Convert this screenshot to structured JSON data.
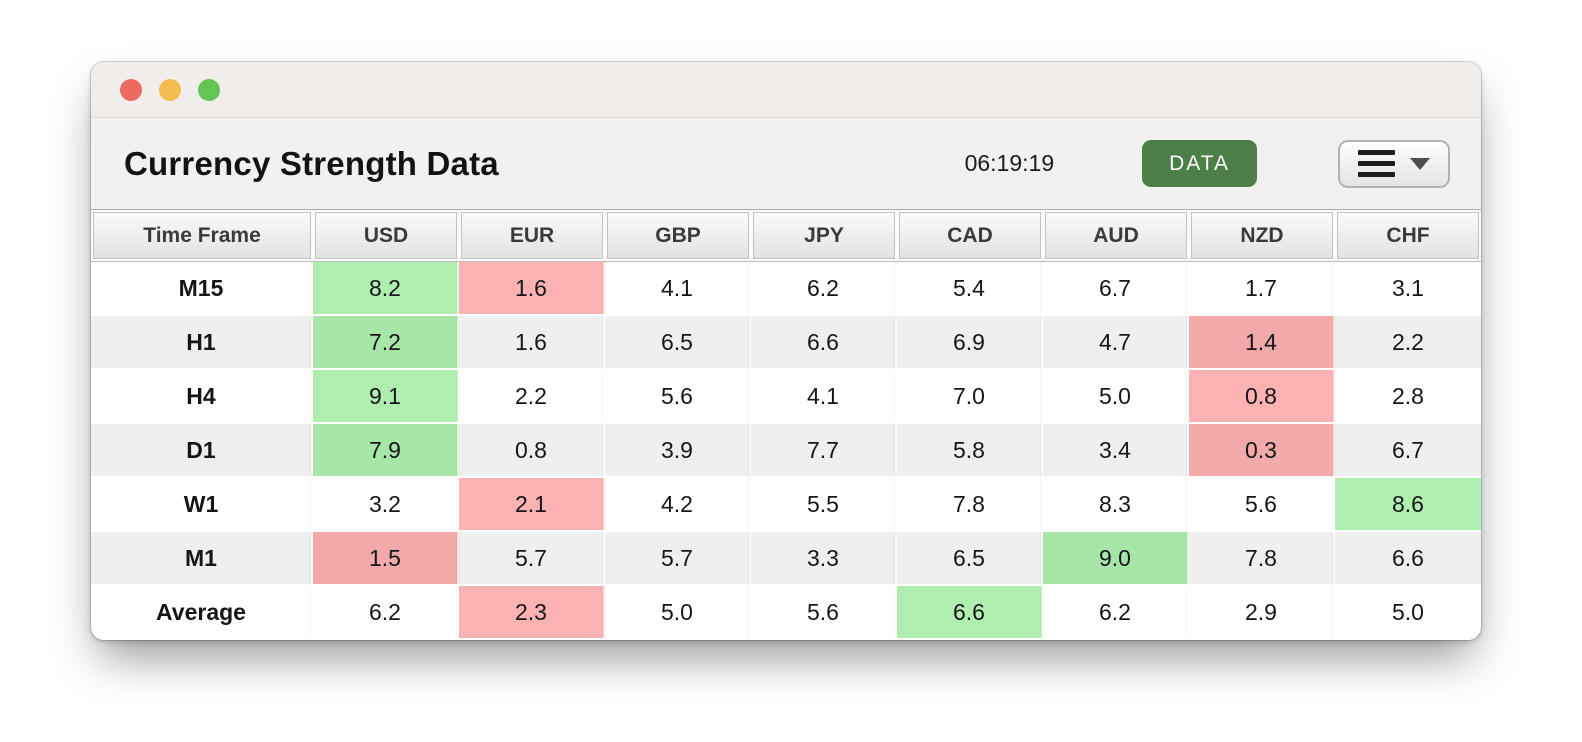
{
  "window": {
    "title": "Currency Strength Data",
    "clock": "06:19:19",
    "data_button_label": "DATA",
    "traffic_lights": [
      {
        "name": "close-button",
        "color": "#ED6A5F"
      },
      {
        "name": "minimize-button",
        "color": "#F5BD4F"
      },
      {
        "name": "zoom-button",
        "color": "#62C554"
      }
    ],
    "menu_button_icons": [
      "hamburger-icon",
      "chevron-down-icon"
    ]
  },
  "colors": {
    "accent_button_green": "#4B7F47",
    "highlight_green": "#B2F0B2",
    "highlight_red": "#FBB4B4",
    "row_stripe_gray": "#EFEFEF",
    "titlebar_bg": "#F0EDEB",
    "toolbar_bg": "#F3F1F0"
  },
  "table": {
    "columns": [
      "Time Frame",
      "USD",
      "EUR",
      "GBP",
      "JPY",
      "CAD",
      "AUD",
      "NZD",
      "CHF"
    ],
    "rows": [
      {
        "label": "M15",
        "cells": [
          {
            "v": "8.2",
            "hl": "green"
          },
          {
            "v": "1.6",
            "hl": "red"
          },
          {
            "v": "4.1"
          },
          {
            "v": "6.2"
          },
          {
            "v": "5.4"
          },
          {
            "v": "6.7"
          },
          {
            "v": "1.7"
          },
          {
            "v": "3.1"
          }
        ]
      },
      {
        "label": "H1",
        "cells": [
          {
            "v": "7.2",
            "hl": "green"
          },
          {
            "v": "1.6"
          },
          {
            "v": "6.5"
          },
          {
            "v": "6.6"
          },
          {
            "v": "6.9"
          },
          {
            "v": "4.7"
          },
          {
            "v": "1.4",
            "hl": "red"
          },
          {
            "v": "2.2"
          }
        ]
      },
      {
        "label": "H4",
        "cells": [
          {
            "v": "9.1",
            "hl": "green"
          },
          {
            "v": "2.2"
          },
          {
            "v": "5.6"
          },
          {
            "v": "4.1"
          },
          {
            "v": "7.0"
          },
          {
            "v": "5.0"
          },
          {
            "v": "0.8",
            "hl": "red"
          },
          {
            "v": "2.8"
          }
        ]
      },
      {
        "label": "D1",
        "cells": [
          {
            "v": "7.9",
            "hl": "green"
          },
          {
            "v": "0.8"
          },
          {
            "v": "3.9"
          },
          {
            "v": "7.7"
          },
          {
            "v": "5.8"
          },
          {
            "v": "3.4"
          },
          {
            "v": "0.3",
            "hl": "red"
          },
          {
            "v": "6.7"
          }
        ]
      },
      {
        "label": "W1",
        "cells": [
          {
            "v": "3.2"
          },
          {
            "v": "2.1",
            "hl": "red"
          },
          {
            "v": "4.2"
          },
          {
            "v": "5.5"
          },
          {
            "v": "7.8"
          },
          {
            "v": "8.3"
          },
          {
            "v": "5.6"
          },
          {
            "v": "8.6",
            "hl": "green"
          }
        ]
      },
      {
        "label": "M1",
        "cells": [
          {
            "v": "1.5",
            "hl": "red"
          },
          {
            "v": "5.7"
          },
          {
            "v": "5.7"
          },
          {
            "v": "3.3"
          },
          {
            "v": "6.5"
          },
          {
            "v": "9.0",
            "hl": "green"
          },
          {
            "v": "7.8"
          },
          {
            "v": "6.6"
          }
        ]
      },
      {
        "label": "Average",
        "cells": [
          {
            "v": "6.2"
          },
          {
            "v": "2.3",
            "hl": "red"
          },
          {
            "v": "5.0"
          },
          {
            "v": "5.6"
          },
          {
            "v": "6.6",
            "hl": "green"
          },
          {
            "v": "6.2"
          },
          {
            "v": "2.9"
          },
          {
            "v": "5.0"
          }
        ]
      }
    ]
  }
}
